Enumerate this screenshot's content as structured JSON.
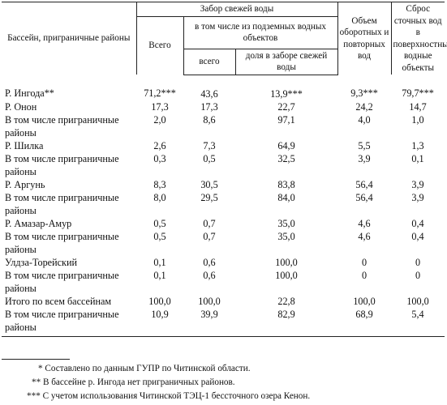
{
  "header": {
    "basin": "Бассейн, приграничные районы",
    "fresh_intake": "Забор свежей воды",
    "total": "Всего",
    "underground": "в том числе из подземных водных объектов",
    "underground_total": "всего",
    "underground_share": "доля в заборе свежей воды",
    "recycled": "Объем оборотных и повторных вод",
    "discharge": "Сброс сточных вод в поверхностные водные объекты"
  },
  "rows": [
    {
      "name": "Р. Ингода**",
      "v1": "71,2***",
      "v2": "43,6",
      "v3": "13,9***",
      "v4": "9,3***",
      "v5": "79,7***"
    },
    {
      "name": "Р. Онон",
      "v1": "17,3",
      "v2": "17,3",
      "v3": "22,7",
      "v4": "24,2",
      "v5": "14,7"
    },
    {
      "name": "В том числе приграничные районы",
      "v1": "2,0",
      "v2": "8,6",
      "v3": "97,1",
      "v4": "4,0",
      "v5": "1,0"
    },
    {
      "name": "Р. Шилка",
      "v1": "2,6",
      "v2": "7,3",
      "v3": "64,9",
      "v4": "5,5",
      "v5": "1,3"
    },
    {
      "name": "В том числе приграничные районы",
      "v1": "0,3",
      "v2": "0,5",
      "v3": "32,5",
      "v4": "3,9",
      "v5": "0,1"
    },
    {
      "name": "Р. Аргунь",
      "v1": "8,3",
      "v2": "30,5",
      "v3": "83,8",
      "v4": "56,4",
      "v5": "3,9"
    },
    {
      "name": "В том числе приграничные районы",
      "v1": "8,0",
      "v2": "29,5",
      "v3": "84,0",
      "v4": "56,4",
      "v5": "3,9"
    },
    {
      "name": "Р. Амазар-Амур",
      "v1": "0,5",
      "v2": "0,7",
      "v3": "35,0",
      "v4": "4,6",
      "v5": "0,4"
    },
    {
      "name": "В том числе приграничные районы",
      "v1": "0,5",
      "v2": "0,7",
      "v3": "35,0",
      "v4": "4,6",
      "v5": "0,4"
    },
    {
      "name": "Улдза-Торейский",
      "v1": "0,1",
      "v2": "0,6",
      "v3": "100,0",
      "v4": "0",
      "v5": "0"
    },
    {
      "name": "В том числе приграничные районы",
      "v1": "0,1",
      "v2": "0,6",
      "v3": "100,0",
      "v4": "0",
      "v5": "0"
    },
    {
      "name": "Итого по всем бассейнам",
      "v1": "100,0",
      "v2": "100,0",
      "v3": "22,8",
      "v4": "100,0",
      "v5": "100,0"
    },
    {
      "name": "В том числе приграничные районы",
      "v1": "10,9",
      "v2": "39,9",
      "v3": "82,9",
      "v4": "68,9",
      "v5": "5,4"
    }
  ],
  "footnotes": [
    "* Составлено по данным ГУПР по Читинской области.",
    "** В бассейне р. Ингода нет приграничных районов.",
    "*** С учетом использования Читинской ТЭЦ-1 бессточного озера Кенон."
  ]
}
